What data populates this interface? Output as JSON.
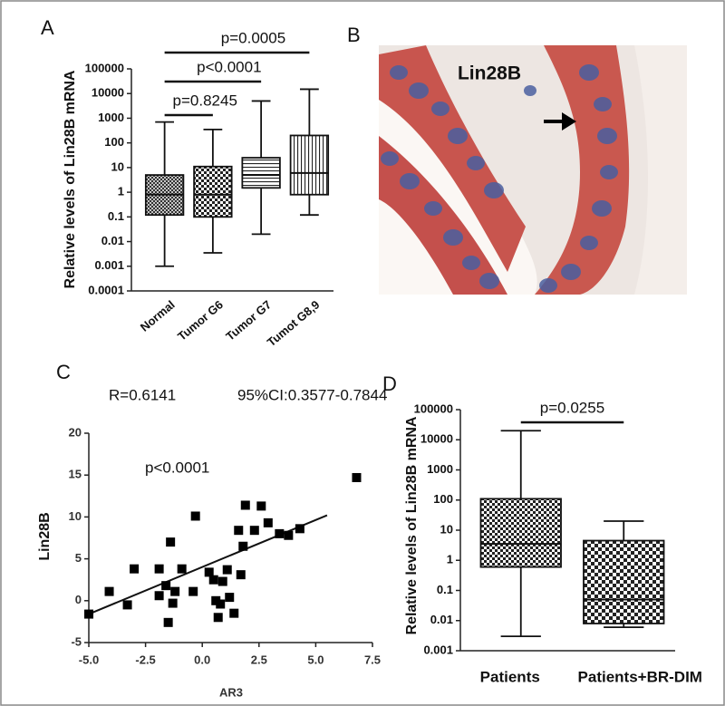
{
  "chart_data": [
    {
      "type": "box",
      "panel": "A",
      "y_label": "Relative levels of Lin28B mRNA",
      "categories": [
        "Normal",
        "Tumor G6",
        "Tumor G7",
        "Tumot G8,9"
      ],
      "fills": [
        "crosshatch",
        "checker",
        "hlines",
        "vlines"
      ],
      "min": [
        0.001,
        0.0035,
        0.02,
        0.12
      ],
      "q1": [
        0.12,
        0.1,
        1.5,
        0.8
      ],
      "median": [
        0.8,
        0.8,
        5,
        6
      ],
      "q3": [
        5,
        11,
        25,
        200
      ],
      "max": [
        700,
        350,
        5000,
        15000
      ],
      "log_y": true,
      "ylim": [
        0.0001,
        100000
      ],
      "yticks": [
        0.0001,
        0.001,
        0.01,
        0.1,
        1,
        10,
        100,
        1000,
        10000,
        100000
      ],
      "comparisons": [
        {
          "label": "p=0.8245",
          "groups": [
            "Normal",
            "Tumor G6"
          ]
        },
        {
          "label": "p<0.0001",
          "groups": [
            "Normal",
            "Tumor G7"
          ]
        },
        {
          "label": "p=0.0005",
          "groups": [
            "Normal",
            "Tumot G8,9"
          ]
        }
      ]
    },
    {
      "type": "scatter",
      "panel": "C",
      "x_label": "AR3",
      "y_label": "Lin28B",
      "annotations": [
        "R=0.6141",
        "95%CI:0.3577-0.7844",
        "p<0.0001"
      ],
      "x": [
        -5.0,
        -4.1,
        -3.3,
        -3.0,
        -1.9,
        -1.9,
        -1.6,
        -1.5,
        -1.4,
        -1.3,
        -1.2,
        -0.9,
        -0.4,
        -0.3,
        0.3,
        0.5,
        0.6,
        0.7,
        0.8,
        0.9,
        1.1,
        1.2,
        1.4,
        1.6,
        1.7,
        1.8,
        1.9,
        2.3,
        2.6,
        2.9,
        3.4,
        3.8,
        4.3,
        6.8
      ],
      "y": [
        -1.6,
        1.1,
        -0.5,
        3.8,
        3.8,
        0.6,
        1.8,
        -2.6,
        7.0,
        -0.3,
        1.1,
        3.8,
        1.1,
        10.1,
        3.4,
        2.5,
        0.0,
        -2.0,
        -0.4,
        2.3,
        3.7,
        0.4,
        -1.5,
        8.4,
        3.1,
        6.5,
        11.4,
        8.4,
        11.3,
        9.3,
        8.0,
        7.8,
        8.6,
        14.7
      ],
      "fit": {
        "x": [
          -5.0,
          5.5
        ],
        "y": [
          -1.6,
          10.2
        ]
      },
      "xlim": [
        -5,
        7.5
      ],
      "xticks": [
        {
          "value": -5,
          "label": "-5.0"
        },
        {
          "value": -2.5,
          "label": "-2.5"
        },
        {
          "value": 0,
          "label": "0.0"
        },
        {
          "value": 2.5,
          "label": "2.5"
        },
        {
          "value": 5,
          "label": "5.0"
        },
        {
          "value": 7.5,
          "label": "7.5"
        }
      ],
      "ylim": [
        -5,
        20
      ],
      "yticks": [
        -5,
        0,
        5,
        10,
        15,
        20
      ]
    },
    {
      "type": "box",
      "panel": "D",
      "y_label": "Relative levels of Lin28B mRNA",
      "categories": [
        "Patients",
        "Patients+BR-DIM"
      ],
      "fills": [
        "checker",
        "checker-large"
      ],
      "min": [
        0.003,
        0.006
      ],
      "q1": [
        0.6,
        0.008
      ],
      "median": [
        3.5,
        0.05
      ],
      "q3": [
        110,
        4.5
      ],
      "max": [
        20000,
        20
      ],
      "log_y": true,
      "ylim": [
        0.001,
        100000
      ],
      "yticks": [
        0.001,
        0.01,
        0.1,
        1,
        10,
        100,
        1000,
        10000,
        100000
      ],
      "comparisons": [
        {
          "label": "p=0.0255",
          "groups": [
            "Patients",
            "Patients+BR-DIM"
          ]
        }
      ]
    }
  ],
  "image": {
    "panel": "B",
    "label": "Lin28B"
  }
}
